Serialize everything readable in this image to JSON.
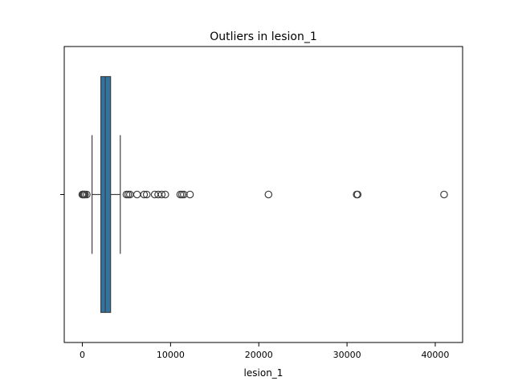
{
  "chart_data": {
    "type": "box",
    "title": "Outliers in lesion_1",
    "xlabel": "lesion_1",
    "ylabel": "",
    "xlim": [
      -2050,
      43100
    ],
    "xticks": [
      0,
      10000,
      20000,
      30000,
      40000
    ],
    "xtick_labels": [
      "0",
      "10000",
      "20000",
      "30000",
      "40000"
    ],
    "grid": false,
    "box": {
      "whisker_low": 1100,
      "q1": 2100,
      "median": 2600,
      "q3": 3200,
      "whisker_high": 4300
    },
    "outliers": [
      0,
      100,
      200,
      300,
      500,
      5000,
      5200,
      5400,
      6200,
      7000,
      7300,
      8200,
      8600,
      9000,
      9400,
      11100,
      11300,
      11500,
      12200,
      21100,
      31100,
      31200,
      41000
    ],
    "colors": {
      "box_fill": "#3274a1",
      "lines": "#3f3f3f",
      "axes": "#000000"
    }
  }
}
